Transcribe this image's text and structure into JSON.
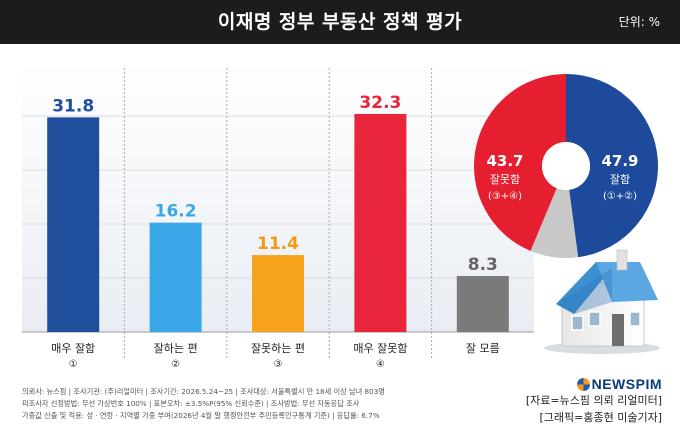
{
  "header": {
    "title": "이재명 정부 부동산 정책 평가",
    "unit": "단위: %"
  },
  "chart_data": [
    {
      "type": "bar",
      "categories": [
        "매우 잘함",
        "잘하는 편",
        "잘못하는 편",
        "매우 잘못함",
        "잘 모름"
      ],
      "category_marks": [
        "①",
        "②",
        "③",
        "④",
        ""
      ],
      "values": [
        31.8,
        16.2,
        11.4,
        32.3,
        8.3
      ],
      "ylim": [
        0,
        40
      ],
      "grid": true,
      "colors": [
        "#1f4e9c",
        "#3aa7e8",
        "#f6a21d",
        "#e8253a",
        "#7a7a7a"
      ],
      "value_colors": [
        "#1f4e9c",
        "#3aa7e8",
        "#f39a14",
        "#e8253a",
        "#666666"
      ]
    },
    {
      "type": "pie",
      "slices": [
        {
          "name": "잘함",
          "mark": "(①+②)",
          "value": 47.9,
          "color": "#1d4a9a"
        },
        {
          "name": "잘못함",
          "mark": "(③+④)",
          "value": 43.7,
          "color": "#e51f2f"
        }
      ],
      "remainder_color": "#c8c8c8"
    }
  ],
  "notes": [
    "의뢰사: 뉴스핌  |  조사기관: (주)리얼미터  |  조사기간: 2026.5.24~25  |  조사대상: 서울특별시 만 18세 이상 남녀 803명",
    "피조사자 선정방법: 무선 가상번호 100%  |  표본오차: ±3.5%P(95% 신뢰수준)  |  조사방법: 무선 자동응답 조사",
    "가중값 산출 및 적용: 성 · 연령 · 지역별 가중 부여(2026년 4월 말 행정안전부 주민등록인구통계 기준)  |  응답률: 6.7%"
  ],
  "brand": {
    "logo": "NEWSPIM",
    "source": "[자료=뉴스핌 의뢰 리얼미터]",
    "graphic": "[그래픽=홍종현 미술기자]"
  }
}
